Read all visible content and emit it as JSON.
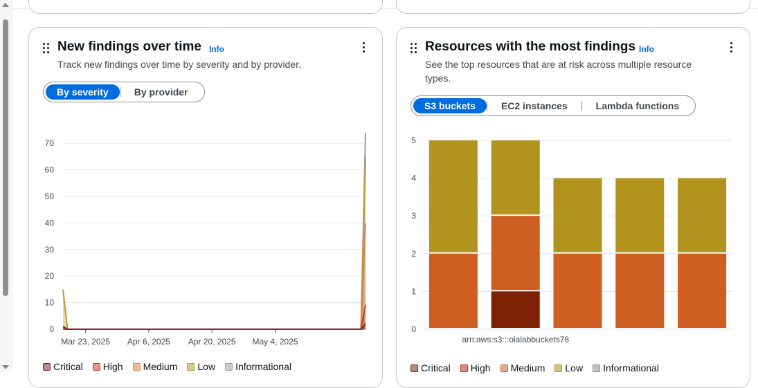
{
  "scrollbar": {
    "up_icon": "triangle-up-icon",
    "down_icon": "triangle-down-icon"
  },
  "left_widget": {
    "title": "New findings over time",
    "info": "Info",
    "description": "Track new findings over time by severity and by provider.",
    "tabs": [
      {
        "label": "By severity",
        "active": true
      },
      {
        "label": "By provider",
        "active": false
      }
    ],
    "legend": [
      {
        "label": "Critical",
        "color": "#7a2a1e"
      },
      {
        "label": "High",
        "color": "#c33d1f"
      },
      {
        "label": "Medium",
        "color": "#e07f4f"
      },
      {
        "label": "Low",
        "color": "#b99a2a"
      },
      {
        "label": "Informational",
        "color": "#9aa0a8"
      }
    ]
  },
  "right_widget": {
    "title": "Resources with the most findings",
    "info": "Info",
    "description": "See the top resources that are at risk across multiple resource types.",
    "tabs": [
      {
        "label": "S3 buckets",
        "active": true
      },
      {
        "label": "EC2 instances",
        "active": false
      },
      {
        "label": "Lambda functions",
        "active": false
      }
    ],
    "legend": [
      {
        "label": "Critical",
        "color": "#7d2105"
      },
      {
        "label": "High",
        "color": "#bc2b10"
      },
      {
        "label": "Medium",
        "color": "#cf5e22"
      },
      {
        "label": "Low",
        "color": "#b2931e"
      },
      {
        "label": "Informational",
        "color": "#8d8d94"
      }
    ]
  },
  "chart_data": [
    {
      "type": "area",
      "title": "New findings over time",
      "x_tick_labels": [
        "Mar 23, 2025",
        "Apr 6, 2025",
        "Apr 20, 2025",
        "May 4, 2025"
      ],
      "x_range": [
        "Mar 18, 2025",
        "May 24, 2025"
      ],
      "ylim": [
        0,
        75
      ],
      "y_ticks": [
        0,
        10,
        20,
        30,
        40,
        50,
        60,
        70
      ],
      "grid": true,
      "legend_position": "bottom",
      "series": [
        {
          "name": "Critical",
          "points": [
            [
              "Mar 18, 2025",
              1
            ],
            [
              "Mar 19, 2025",
              0
            ],
            [
              "May 23, 2025",
              0
            ],
            [
              "May 24, 2025",
              2
            ]
          ]
        },
        {
          "name": "High",
          "points": [
            [
              "Mar 18, 2025",
              0
            ],
            [
              "Mar 19, 2025",
              0
            ],
            [
              "May 23, 2025",
              0
            ],
            [
              "May 24, 2025",
              9
            ]
          ]
        },
        {
          "name": "Medium",
          "points": [
            [
              "Mar 18, 2025",
              0
            ],
            [
              "Mar 19, 2025",
              0
            ],
            [
              "May 23, 2025",
              0
            ],
            [
              "May 24, 2025",
              40
            ]
          ]
        },
        {
          "name": "Low",
          "points": [
            [
              "Mar 18, 2025",
              15
            ],
            [
              "Mar 19, 2025",
              0
            ],
            [
              "May 23, 2025",
              0
            ],
            [
              "May 24, 2025",
              65
            ]
          ]
        },
        {
          "name": "Informational",
          "points": [
            [
              "Mar 18, 2025",
              0
            ],
            [
              "Mar 19, 2025",
              0
            ],
            [
              "May 23, 2025",
              0
            ],
            [
              "May 24, 2025",
              74
            ]
          ]
        }
      ]
    },
    {
      "type": "bar",
      "stacked": true,
      "title": "Resources with the most findings",
      "categories": [
        "",
        "arn:aws:s3:::olalabbuckets78",
        "",
        "",
        ""
      ],
      "ylim": [
        0,
        5
      ],
      "y_ticks": [
        0,
        1,
        2,
        3,
        4,
        5
      ],
      "grid": true,
      "legend_position": "bottom",
      "series": [
        {
          "name": "Critical",
          "values": [
            0,
            1,
            0,
            0,
            0
          ]
        },
        {
          "name": "High",
          "values": [
            0,
            0,
            0,
            0,
            0
          ]
        },
        {
          "name": "Medium",
          "values": [
            2,
            2,
            2,
            2,
            2
          ]
        },
        {
          "name": "Low",
          "values": [
            3,
            2,
            2,
            2,
            2
          ]
        },
        {
          "name": "Informational",
          "values": [
            0,
            0,
            0,
            0,
            0
          ]
        }
      ]
    }
  ]
}
